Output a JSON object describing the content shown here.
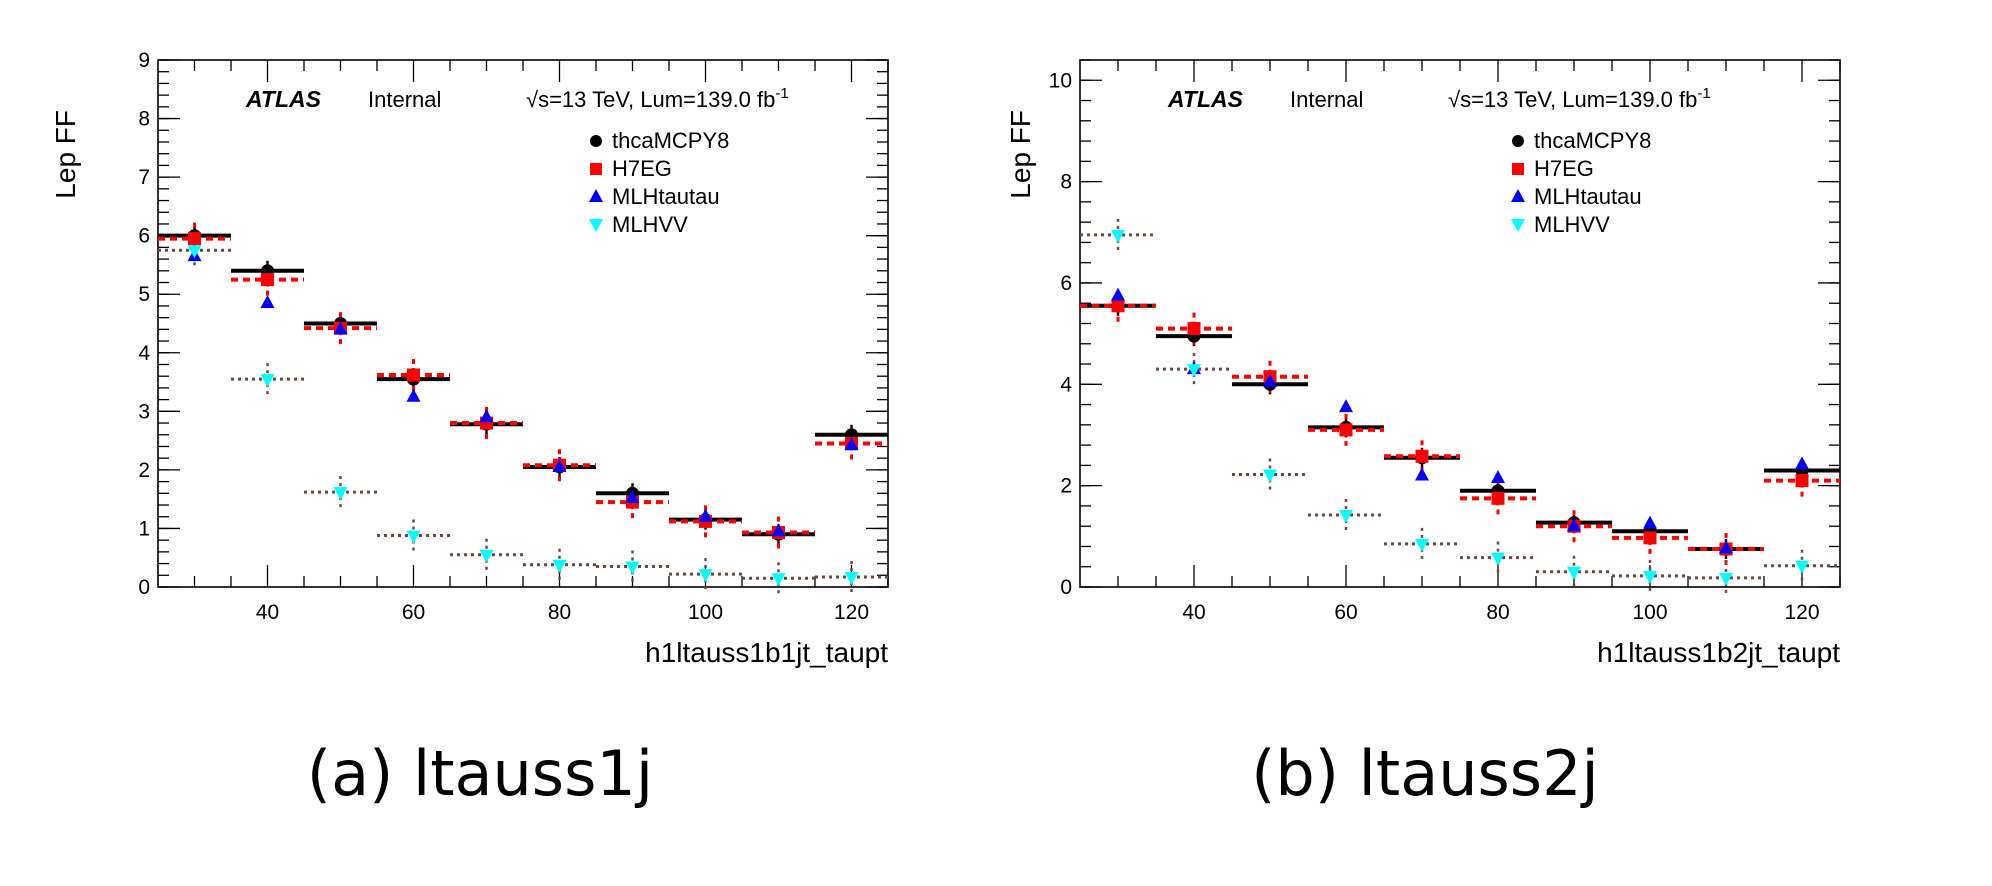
{
  "chart_data": [
    {
      "type": "scatter",
      "panel_label": "(a) ltauss1j",
      "xlabel": "h1ltauss1b1jt_taupt",
      "ylabel": "Lep FF",
      "ylim": [
        0,
        9
      ],
      "xlim": [
        25,
        125
      ],
      "xticks": [
        40,
        60,
        80,
        100,
        120
      ],
      "yticks": [
        0,
        1,
        2,
        3,
        4,
        5,
        6,
        7,
        8,
        9
      ],
      "atlas_label": "ATLAS",
      "atlas_status": "Internal",
      "energy_prefix": "√s=13 TeV, Lum=139.0 fb",
      "energy_exp": "-1",
      "legend_position": "top-right",
      "grid": false,
      "x": [
        30,
        40,
        50,
        60,
        70,
        80,
        90,
        100,
        110,
        120
      ],
      "series": [
        {
          "name": "thcaMCPY8",
          "color": "#000000",
          "marker": "circle",
          "values": [
            6.0,
            5.4,
            4.5,
            3.55,
            2.78,
            2.05,
            1.6,
            1.15,
            0.9,
            2.6
          ]
        },
        {
          "name": "H7EG",
          "color": "#ff0000",
          "marker": "square",
          "values": [
            5.95,
            5.25,
            4.42,
            3.62,
            2.8,
            2.08,
            1.45,
            1.12,
            0.93,
            2.45
          ]
        },
        {
          "name": "MLHtautau",
          "color": "#0000ff",
          "marker": "triangle-up",
          "values": [
            5.65,
            4.85,
            4.4,
            3.25,
            2.9,
            2.05,
            1.52,
            1.2,
            0.95,
            2.42
          ]
        },
        {
          "name": "MLHVV",
          "color": "#00ffff",
          "marker": "triangle-down",
          "values": [
            5.75,
            3.55,
            1.62,
            0.88,
            0.55,
            0.38,
            0.35,
            0.22,
            0.15,
            0.17
          ]
        }
      ]
    },
    {
      "type": "scatter",
      "panel_label": "(b) ltauss2j",
      "xlabel": "h1ltauss1b2jt_taupt",
      "ylabel": "Lep FF",
      "ylim": [
        0,
        10.4
      ],
      "xlim": [
        25,
        125
      ],
      "xticks": [
        40,
        60,
        80,
        100,
        120
      ],
      "yticks": [
        0,
        2,
        4,
        6,
        8,
        10
      ],
      "atlas_label": "ATLAS",
      "atlas_status": "Internal",
      "energy_prefix": "√s=13 TeV, Lum=139.0 fb",
      "energy_exp": "-1",
      "legend_position": "top-right",
      "grid": false,
      "x": [
        30,
        40,
        50,
        60,
        70,
        80,
        90,
        100,
        110,
        120
      ],
      "series": [
        {
          "name": "thcaMCPY8",
          "color": "#000000",
          "marker": "circle",
          "values": [
            5.55,
            4.95,
            4.0,
            3.15,
            2.55,
            1.9,
            1.27,
            1.1,
            0.75,
            2.3
          ]
        },
        {
          "name": "H7EG",
          "color": "#ff0000",
          "marker": "square",
          "values": [
            5.55,
            5.1,
            4.15,
            3.1,
            2.58,
            1.75,
            1.2,
            0.97,
            0.75,
            2.1
          ]
        },
        {
          "name": "MLHtautau",
          "color": "#0000ff",
          "marker": "triangle-up",
          "values": [
            5.75,
            4.3,
            4.05,
            3.55,
            2.2,
            2.15,
            1.2,
            1.25,
            0.76,
            2.42
          ]
        },
        {
          "name": "MLHVV",
          "color": "#00ffff",
          "marker": "triangle-down",
          "values": [
            6.95,
            4.3,
            2.22,
            1.42,
            0.85,
            0.58,
            0.3,
            0.22,
            0.18,
            0.42
          ]
        }
      ]
    }
  ]
}
